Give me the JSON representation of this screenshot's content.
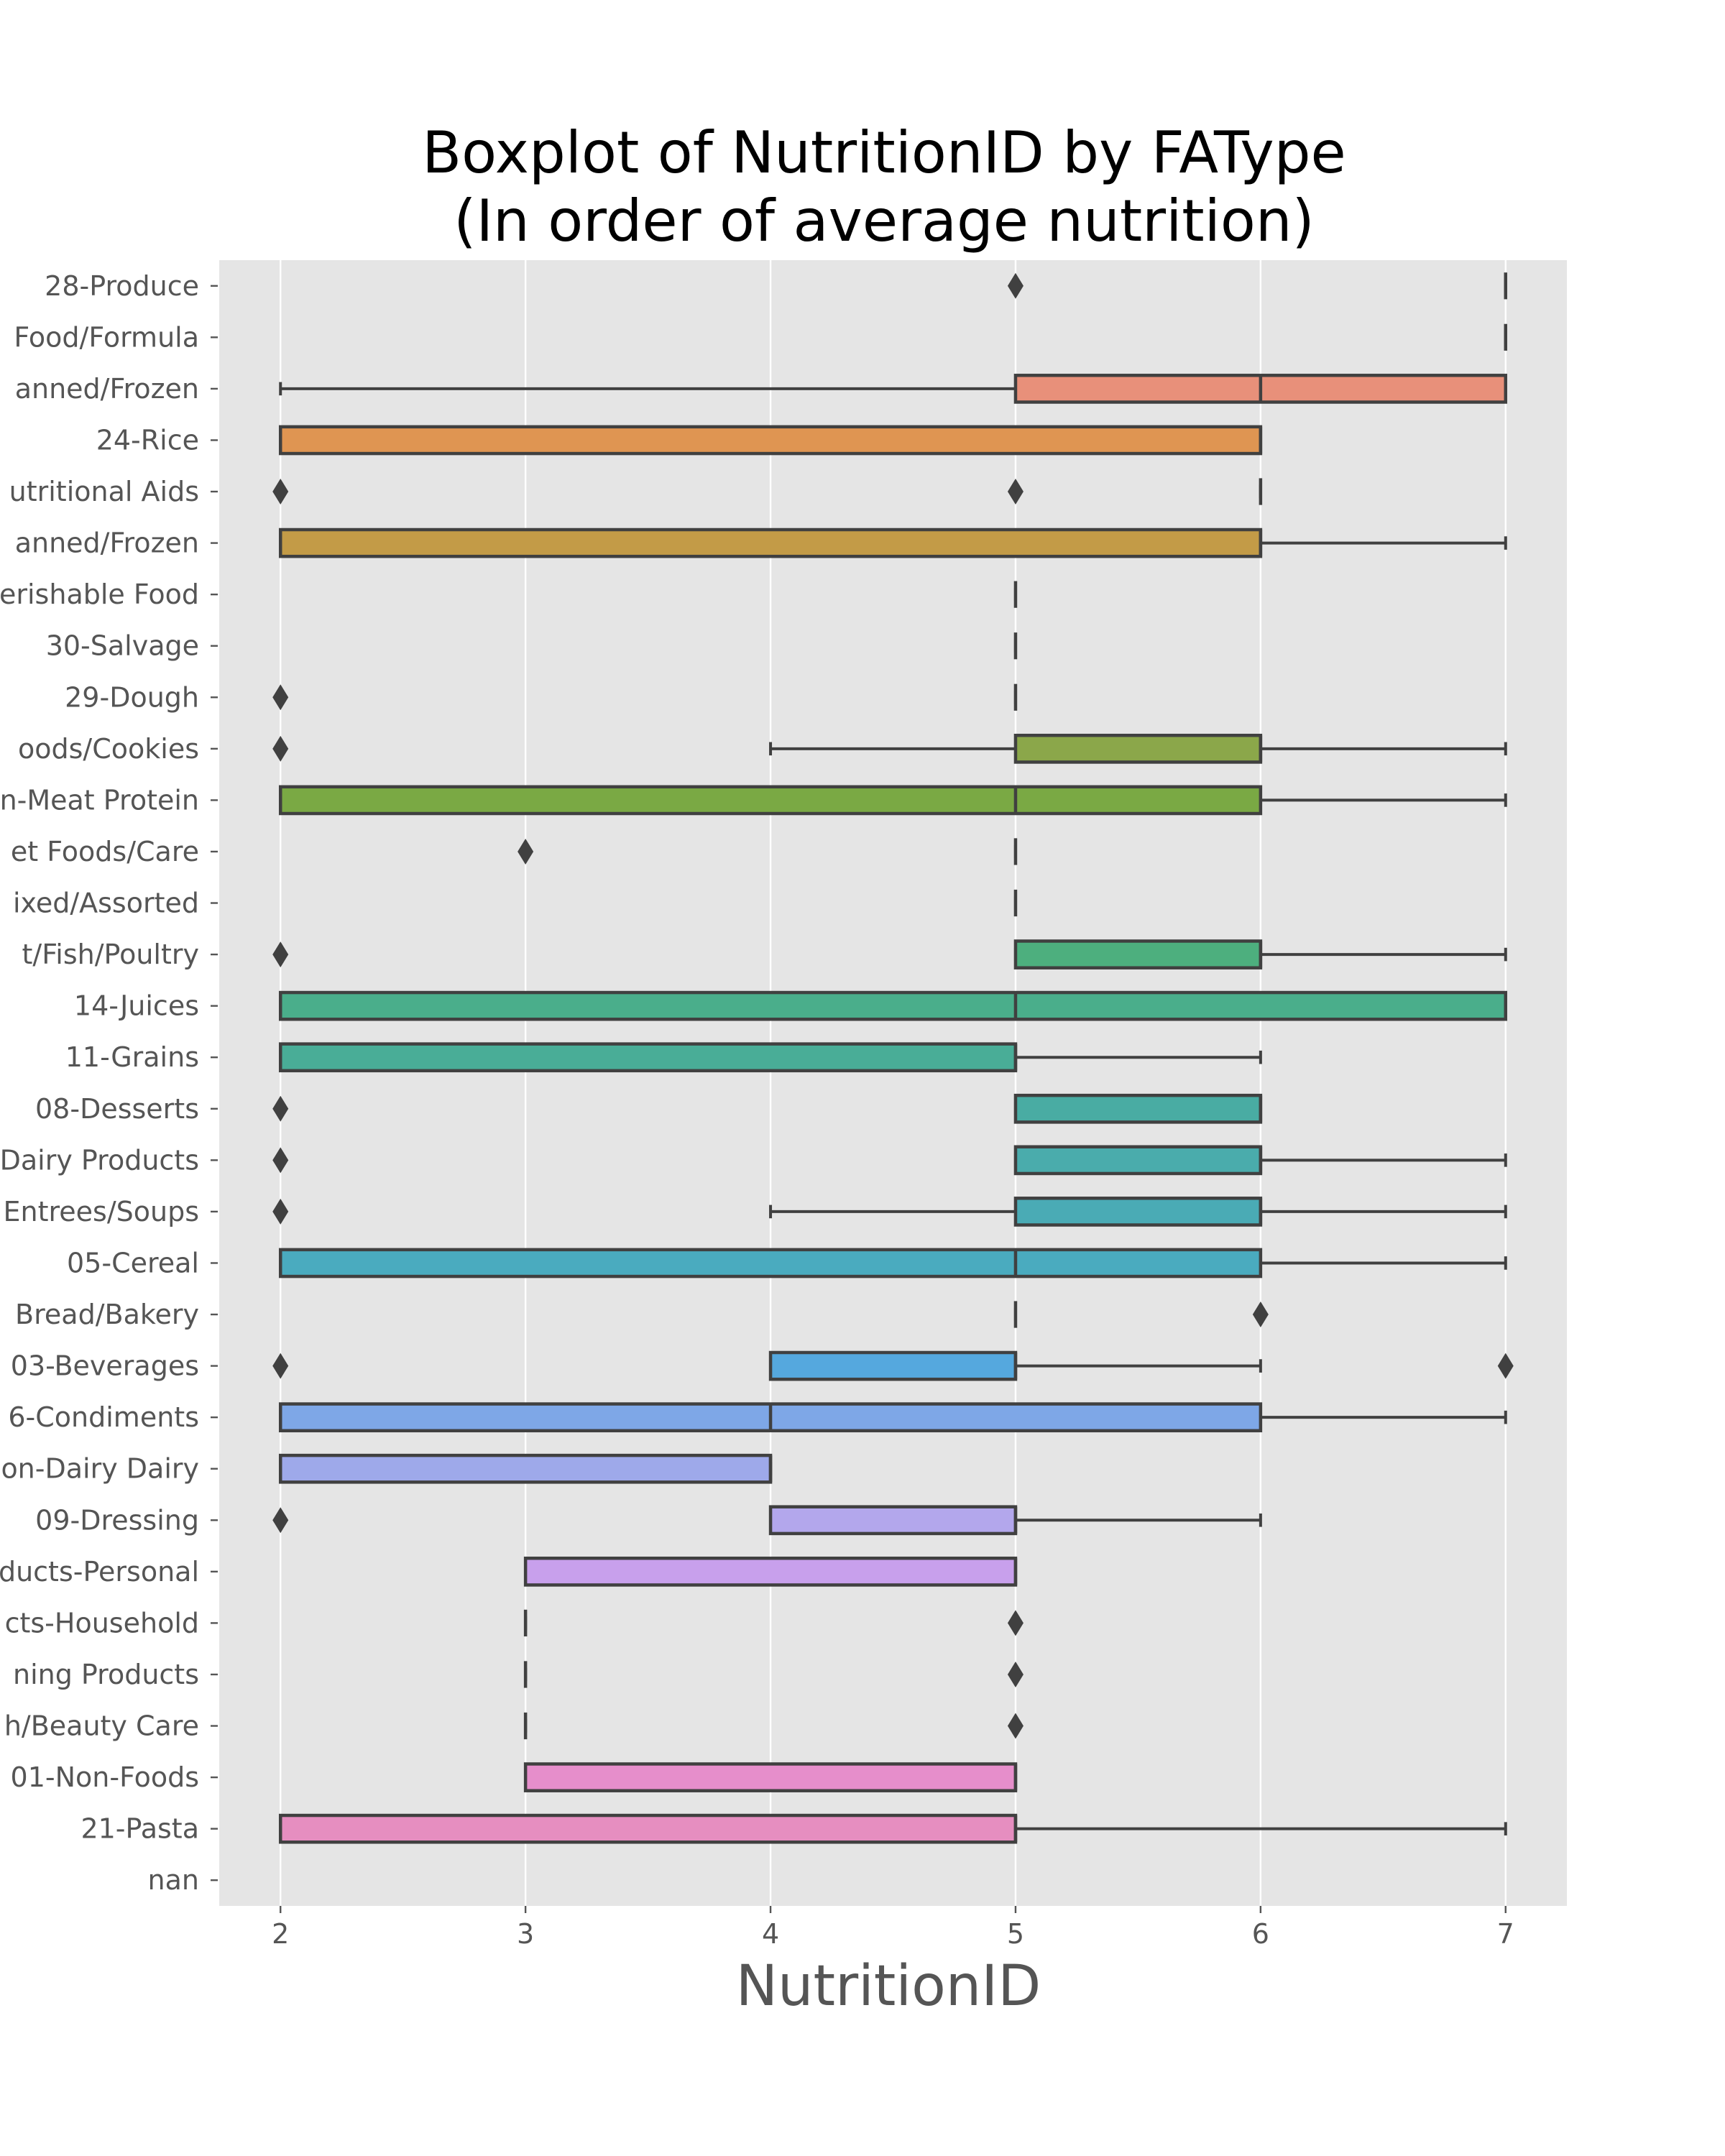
{
  "chart_data": {
    "type": "boxplot",
    "title": "Boxplot of NutritionID by FAType\n(In order of average nutrition)",
    "xlabel": "NutritionID",
    "ylabel": "",
    "xlim": [
      1.75,
      7.25
    ],
    "xticks": [
      2,
      3,
      4,
      5,
      6,
      7
    ],
    "grid": true,
    "orientation": "horizontal",
    "categories": [
      {
        "label": "28-Produce",
        "color": "#e88d7a",
        "q1": 7,
        "median": 7,
        "q3": 7,
        "whisker_low": 7,
        "whisker_high": 7,
        "outliers": [
          5
        ]
      },
      {
        "label": "Food/Formula",
        "color": "#e68d6e",
        "q1": 7,
        "median": 7,
        "q3": 7,
        "whisker_low": 7,
        "whisker_high": 7,
        "outliers": []
      },
      {
        "label": "anned/Frozen",
        "color": "#e8907a",
        "q1": 5,
        "median": 6,
        "q3": 7,
        "whisker_low": 2,
        "whisker_high": 7,
        "outliers": []
      },
      {
        "label": "24-Rice",
        "color": "#df9552",
        "q1": 2,
        "median": 6,
        "q3": 6,
        "whisker_low": 2,
        "whisker_high": 6,
        "outliers": []
      },
      {
        "label": "utritional Aids",
        "color": "#d49a49",
        "q1": 6,
        "median": 6,
        "q3": 6,
        "whisker_low": 6,
        "whisker_high": 6,
        "outliers": [
          2,
          5
        ]
      },
      {
        "label": "anned/Frozen",
        "color": "#c39b47",
        "q1": 2,
        "median": 6,
        "q3": 6,
        "whisker_low": 2,
        "whisker_high": 7,
        "outliers": []
      },
      {
        "label": "erishable Food",
        "color": "#b39f47",
        "q1": 5,
        "median": 5,
        "q3": 5,
        "whisker_low": 5,
        "whisker_high": 5,
        "outliers": []
      },
      {
        "label": "30-Salvage",
        "color": "#a5a247",
        "q1": 5,
        "median": 5,
        "q3": 5,
        "whisker_low": 5,
        "whisker_high": 5,
        "outliers": []
      },
      {
        "label": "29-Dough",
        "color": "#98a548",
        "q1": 5,
        "median": 5,
        "q3": 5,
        "whisker_low": 5,
        "whisker_high": 5,
        "outliers": [
          2
        ]
      },
      {
        "label": "oods/Cookies",
        "color": "#8ba74a",
        "q1": 5,
        "median": 6,
        "q3": 6,
        "whisker_low": 4,
        "whisker_high": 7,
        "outliers": [
          2
        ]
      },
      {
        "label": "n-Meat Protein",
        "color": "#7aa944",
        "q1": 2,
        "median": 5,
        "q3": 6,
        "whisker_low": 2,
        "whisker_high": 7,
        "outliers": []
      },
      {
        "label": "et Foods/Care",
        "color": "#5dac5a",
        "q1": 5,
        "median": 5,
        "q3": 5,
        "whisker_low": 5,
        "whisker_high": 5,
        "outliers": [
          3
        ]
      },
      {
        "label": "ixed/Assorted",
        "color": "#4fae6c",
        "q1": 5,
        "median": 5,
        "q3": 5,
        "whisker_low": 5,
        "whisker_high": 5,
        "outliers": []
      },
      {
        "label": "t/Fish/Poultry",
        "color": "#4daf7e",
        "q1": 5,
        "median": 6,
        "q3": 6,
        "whisker_low": 5,
        "whisker_high": 7,
        "outliers": [
          2
        ]
      },
      {
        "label": "14-Juices",
        "color": "#4aae8b",
        "q1": 2,
        "median": 5,
        "q3": 7,
        "whisker_low": 2,
        "whisker_high": 7,
        "outliers": []
      },
      {
        "label": "11-Grains",
        "color": "#49ad97",
        "q1": 2,
        "median": 5,
        "q3": 5,
        "whisker_low": 2,
        "whisker_high": 6,
        "outliers": []
      },
      {
        "label": "08-Desserts",
        "color": "#49aca3",
        "q1": 5,
        "median": 6,
        "q3": 6,
        "whisker_low": 5,
        "whisker_high": 6,
        "outliers": [
          2
        ]
      },
      {
        "label": "Dairy Products",
        "color": "#4aacac",
        "q1": 5,
        "median": 6,
        "q3": 6,
        "whisker_low": 5,
        "whisker_high": 7,
        "outliers": [
          2
        ]
      },
      {
        "label": "Entrees/Soups",
        "color": "#4aabb5",
        "q1": 5,
        "median": 6,
        "q3": 6,
        "whisker_low": 4,
        "whisker_high": 7,
        "outliers": [
          2
        ]
      },
      {
        "label": "05-Cereal",
        "color": "#4aabbf",
        "q1": 2,
        "median": 5,
        "q3": 6,
        "whisker_low": 2,
        "whisker_high": 7,
        "outliers": []
      },
      {
        "label": "Bread/Bakery",
        "color": "#4daac9",
        "q1": 5,
        "median": 5,
        "q3": 5,
        "whisker_low": 5,
        "whisker_high": 5,
        "outliers": [
          6
        ]
      },
      {
        "label": "03-Beverages",
        "color": "#55a8de",
        "q1": 4,
        "median": 5,
        "q3": 5,
        "whisker_low": 4,
        "whisker_high": 6,
        "outliers": [
          2,
          7
        ]
      },
      {
        "label": "6-Condiments",
        "color": "#7ea7e7",
        "q1": 2,
        "median": 4,
        "q3": 6,
        "whisker_low": 2,
        "whisker_high": 7,
        "outliers": []
      },
      {
        "label": "on-Dairy Dairy",
        "color": "#9ea9ea",
        "q1": 2,
        "median": 4,
        "q3": 4,
        "whisker_low": 2,
        "whisker_high": 4,
        "outliers": []
      },
      {
        "label": "09-Dressing",
        "color": "#b3a7ec",
        "q1": 4,
        "median": 5,
        "q3": 5,
        "whisker_low": 4,
        "whisker_high": 6,
        "outliers": [
          2
        ]
      },
      {
        "label": "ducts-Personal",
        "color": "#c8a0ec",
        "q1": 3,
        "median": 5,
        "q3": 5,
        "whisker_low": 3,
        "whisker_high": 5,
        "outliers": []
      },
      {
        "label": "cts-Household",
        "color": "#d59be8",
        "q1": 3,
        "median": 3,
        "q3": 3,
        "whisker_low": 3,
        "whisker_high": 3,
        "outliers": [
          5
        ]
      },
      {
        "label": "ning Products",
        "color": "#df96e0",
        "q1": 3,
        "median": 3,
        "q3": 3,
        "whisker_low": 3,
        "whisker_high": 3,
        "outliers": [
          5
        ]
      },
      {
        "label": "h/Beauty Care",
        "color": "#e592d6",
        "q1": 3,
        "median": 3,
        "q3": 3,
        "whisker_low": 3,
        "whisker_high": 3,
        "outliers": [
          5
        ]
      },
      {
        "label": "01-Non-Foods",
        "color": "#e68ecb",
        "q1": 3,
        "median": 5,
        "q3": 5,
        "whisker_low": 3,
        "whisker_high": 5,
        "outliers": []
      },
      {
        "label": "21-Pasta",
        "color": "#e68ec0",
        "q1": 2,
        "median": 5,
        "q3": 5,
        "whisker_low": 2,
        "whisker_high": 7,
        "outliers": []
      },
      {
        "label": "nan",
        "color": "#e68eb8",
        "q1": null,
        "median": null,
        "q3": null,
        "whisker_low": null,
        "whisker_high": null,
        "outliers": []
      }
    ]
  }
}
